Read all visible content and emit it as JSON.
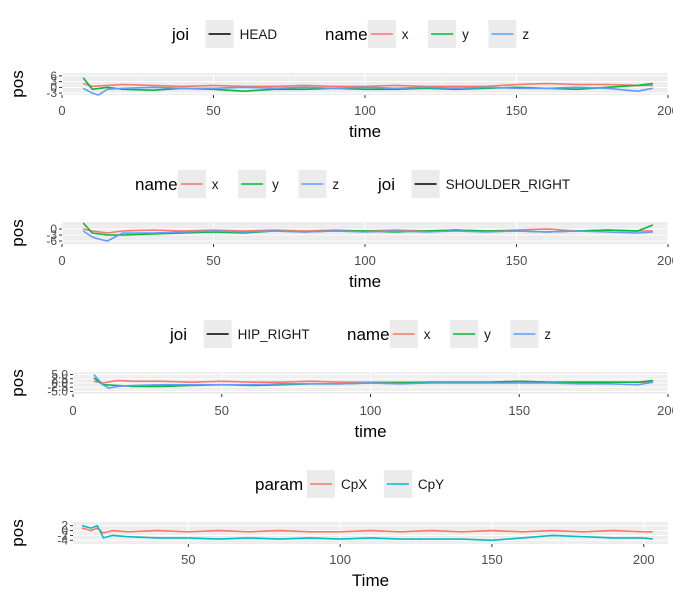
{
  "chart_data": [
    {
      "type": "line",
      "xlabel": "time",
      "ylabel": "pos",
      "xlim": [
        0,
        200
      ],
      "xticks": [
        0,
        50,
        100,
        150,
        200
      ],
      "ylim": [
        -4,
        7.5
      ],
      "yticks": [
        -3,
        0,
        3,
        6
      ],
      "ytick_labels": [
        "-3",
        "0",
        "3",
        "6"
      ],
      "grid": true,
      "legend": {
        "position": "top",
        "groups": [
          {
            "title": "joi",
            "entries": [
              {
                "label": "HEAD",
                "color": "#000000"
              }
            ]
          },
          {
            "title": "name",
            "entries": [
              {
                "label": "x",
                "color": "#F8766D"
              },
              {
                "label": "y",
                "color": "#00BA38"
              },
              {
                "label": "z",
                "color": "#619CFF"
              }
            ]
          }
        ]
      },
      "series": [
        {
          "name": "x",
          "color": "#F8766D",
          "x": [
            7,
            10,
            15,
            20,
            30,
            40,
            50,
            60,
            70,
            80,
            90,
            100,
            110,
            120,
            130,
            140,
            150,
            160,
            170,
            180,
            190,
            195
          ],
          "values": [
            2,
            0.5,
            1,
            1.5,
            1,
            0.5,
            1,
            0.5,
            0.5,
            1,
            0.5,
            0.5,
            1,
            0.5,
            0.5,
            0.5,
            1.5,
            2,
            1.5,
            1.5,
            1,
            1
          ]
        },
        {
          "name": "y",
          "color": "#00BA38",
          "x": [
            7,
            10,
            15,
            20,
            30,
            40,
            50,
            60,
            70,
            80,
            90,
            100,
            110,
            120,
            130,
            140,
            150,
            160,
            170,
            180,
            190,
            195
          ],
          "values": [
            5,
            -1,
            0,
            -1,
            -1.5,
            -0.5,
            -1,
            -2,
            -1,
            -1,
            -0.5,
            -1,
            -1,
            -0.5,
            -1,
            -0.5,
            0,
            -0.5,
            -1,
            0,
            1,
            2
          ]
        },
        {
          "name": "z",
          "color": "#619CFF",
          "x": [
            7,
            10,
            12,
            15,
            20,
            30,
            40,
            50,
            60,
            70,
            80,
            90,
            100,
            110,
            120,
            130,
            140,
            150,
            160,
            170,
            180,
            190,
            195
          ],
          "values": [
            -0.5,
            -3,
            -4,
            -1,
            -0.5,
            0,
            -0.5,
            -0.5,
            0,
            -0.5,
            0,
            -0.5,
            0,
            -0.5,
            0,
            -0.5,
            0,
            -0.5,
            -0.5,
            0,
            -0.5,
            -2,
            -0.5
          ]
        }
      ]
    },
    {
      "type": "line",
      "xlabel": "time",
      "ylabel": "pos",
      "xlim": [
        0,
        200
      ],
      "xticks": [
        0,
        50,
        100,
        150,
        200
      ],
      "ylim": [
        -7.5,
        3.5
      ],
      "yticks": [
        -6,
        -3,
        0
      ],
      "ytick_labels": [
        "-6",
        "-3",
        "0"
      ],
      "grid": true,
      "legend": {
        "position": "top",
        "groups": [
          {
            "title": "name",
            "entries": [
              {
                "label": "x",
                "color": "#F8766D"
              },
              {
                "label": "y",
                "color": "#00BA38"
              },
              {
                "label": "z",
                "color": "#619CFF"
              }
            ]
          },
          {
            "title": "joi",
            "entries": [
              {
                "label": "SHOULDER_RIGHT",
                "color": "#000000"
              }
            ]
          }
        ]
      },
      "series": [
        {
          "name": "x",
          "color": "#F8766D",
          "x": [
            7,
            10,
            15,
            20,
            30,
            40,
            50,
            60,
            70,
            80,
            90,
            100,
            110,
            120,
            130,
            140,
            150,
            160,
            170,
            180,
            190,
            195
          ],
          "values": [
            0,
            -1,
            -2,
            -1,
            -0.5,
            -1,
            -0.5,
            -1,
            -0.5,
            -1,
            -0.5,
            -1,
            -0.5,
            -1,
            -0.5,
            -1,
            -0.5,
            0,
            -1,
            -0.5,
            -1,
            -1
          ]
        },
        {
          "name": "y",
          "color": "#00BA38",
          "x": [
            7,
            10,
            15,
            20,
            30,
            40,
            50,
            60,
            70,
            80,
            90,
            100,
            110,
            120,
            130,
            140,
            150,
            160,
            170,
            180,
            190,
            195
          ],
          "values": [
            3,
            -2,
            -3,
            -3,
            -2.5,
            -2,
            -1.5,
            -2,
            -1,
            -1.5,
            -1,
            -1,
            -1.5,
            -1,
            -0.5,
            -1,
            -1,
            -1.5,
            -1,
            -0.5,
            -1,
            2
          ]
        },
        {
          "name": "z",
          "color": "#619CFF",
          "x": [
            7,
            10,
            12,
            15,
            20,
            30,
            40,
            50,
            60,
            70,
            80,
            90,
            100,
            110,
            120,
            130,
            140,
            150,
            160,
            170,
            180,
            190,
            195
          ],
          "values": [
            -1,
            -4,
            -5,
            -6,
            -2,
            -2,
            -1.5,
            -1,
            -1.5,
            -1,
            -1.5,
            -1,
            -1.5,
            -1,
            -1.5,
            -1,
            -1.5,
            -1,
            -1.5,
            -1,
            -1.5,
            -2,
            -1.5
          ]
        }
      ]
    },
    {
      "type": "line",
      "xlabel": "time",
      "ylabel": "pos",
      "xlim": [
        0,
        200
      ],
      "xticks": [
        0,
        50,
        100,
        150,
        200
      ],
      "ylim": [
        -6.5,
        6.5
      ],
      "yticks": [
        -5,
        -2.5,
        0,
        2.5,
        5
      ],
      "ytick_labels": [
        "-5.0",
        "-2.5",
        "0.0",
        "2.5",
        "5.0"
      ],
      "grid": true,
      "legend": {
        "position": "top",
        "groups": [
          {
            "title": "joi",
            "entries": [
              {
                "label": "HIP_RIGHT",
                "color": "#000000"
              }
            ]
          },
          {
            "title": "name",
            "entries": [
              {
                "label": "x",
                "color": "#F8766D"
              },
              {
                "label": "y",
                "color": "#00BA38"
              },
              {
                "label": "z",
                "color": "#619CFF"
              }
            ]
          }
        ]
      },
      "series": [
        {
          "name": "x",
          "color": "#F8766D",
          "x": [
            7,
            10,
            15,
            20,
            30,
            40,
            50,
            60,
            70,
            80,
            90,
            100,
            110,
            120,
            130,
            140,
            150,
            160,
            170,
            180,
            190,
            195
          ],
          "values": [
            1,
            0,
            1.5,
            1,
            1,
            0.5,
            1,
            0.5,
            0.5,
            1,
            0.5,
            0.5,
            0.5,
            0.5,
            0.5,
            0.5,
            1,
            0.5,
            0.5,
            0.5,
            0.5,
            0.5
          ]
        },
        {
          "name": "y",
          "color": "#00BA38",
          "x": [
            7,
            10,
            15,
            20,
            30,
            40,
            50,
            60,
            70,
            80,
            90,
            100,
            110,
            120,
            130,
            140,
            150,
            160,
            170,
            180,
            190,
            195
          ],
          "values": [
            3,
            -1,
            -1.5,
            -2,
            -2,
            -1.5,
            -1,
            -1.5,
            -1,
            -0.5,
            -0.5,
            0,
            0,
            0.5,
            0.5,
            0.5,
            1,
            0.5,
            0.5,
            0.5,
            0.5,
            1.5
          ]
        },
        {
          "name": "z",
          "color": "#619CFF",
          "x": [
            7,
            10,
            12,
            15,
            20,
            30,
            40,
            50,
            60,
            70,
            80,
            90,
            100,
            110,
            120,
            130,
            140,
            150,
            160,
            170,
            180,
            190,
            195
          ],
          "values": [
            5,
            -1,
            -3,
            -2,
            -1.5,
            -1,
            -1,
            -1,
            -1,
            -0.5,
            -0.5,
            -0.5,
            0,
            -0.5,
            0,
            0,
            0,
            0,
            0,
            -0.5,
            -0.5,
            -1,
            0.5
          ]
        }
      ]
    },
    {
      "type": "line",
      "xlabel": "Time",
      "ylabel": "pos",
      "xlim": [
        12,
        208
      ],
      "xticks": [
        50,
        100,
        150,
        200
      ],
      "ylim": [
        -5.5,
        3.5
      ],
      "yticks": [
        -4,
        -2,
        0,
        2
      ],
      "ytick_labels": [
        "-4",
        "-2",
        "0",
        "2"
      ],
      "grid": true,
      "legend": {
        "position": "top",
        "groups": [
          {
            "title": "param",
            "entries": [
              {
                "label": "CpX",
                "color": "#F8766D"
              },
              {
                "label": "CpY",
                "color": "#00BFC4"
              }
            ]
          }
        ]
      },
      "series": [
        {
          "name": "CpX",
          "color": "#F8766D",
          "x": [
            15,
            18,
            20,
            22,
            25,
            30,
            40,
            50,
            60,
            70,
            80,
            90,
            100,
            110,
            120,
            130,
            140,
            150,
            160,
            170,
            180,
            190,
            200,
            203
          ],
          "values": [
            1,
            0,
            1,
            -1,
            0,
            -0.5,
            0,
            -0.5,
            0,
            -0.5,
            0,
            -0.5,
            -0.5,
            0,
            -0.5,
            0,
            -0.5,
            0,
            -0.5,
            0,
            -0.5,
            0,
            -0.5,
            -0.5
          ]
        },
        {
          "name": "CpY",
          "color": "#00BFC4",
          "x": [
            15,
            18,
            20,
            22,
            25,
            30,
            40,
            50,
            60,
            70,
            80,
            90,
            100,
            110,
            120,
            130,
            140,
            150,
            160,
            170,
            180,
            190,
            200,
            203
          ],
          "values": [
            2,
            1,
            2,
            -3,
            -2,
            -2.5,
            -3,
            -3,
            -3.5,
            -3,
            -3.5,
            -3,
            -3.5,
            -3,
            -3.5,
            -3.5,
            -3.5,
            -4,
            -3,
            -2,
            -2.5,
            -3,
            -3,
            -3.5
          ]
        }
      ]
    }
  ]
}
